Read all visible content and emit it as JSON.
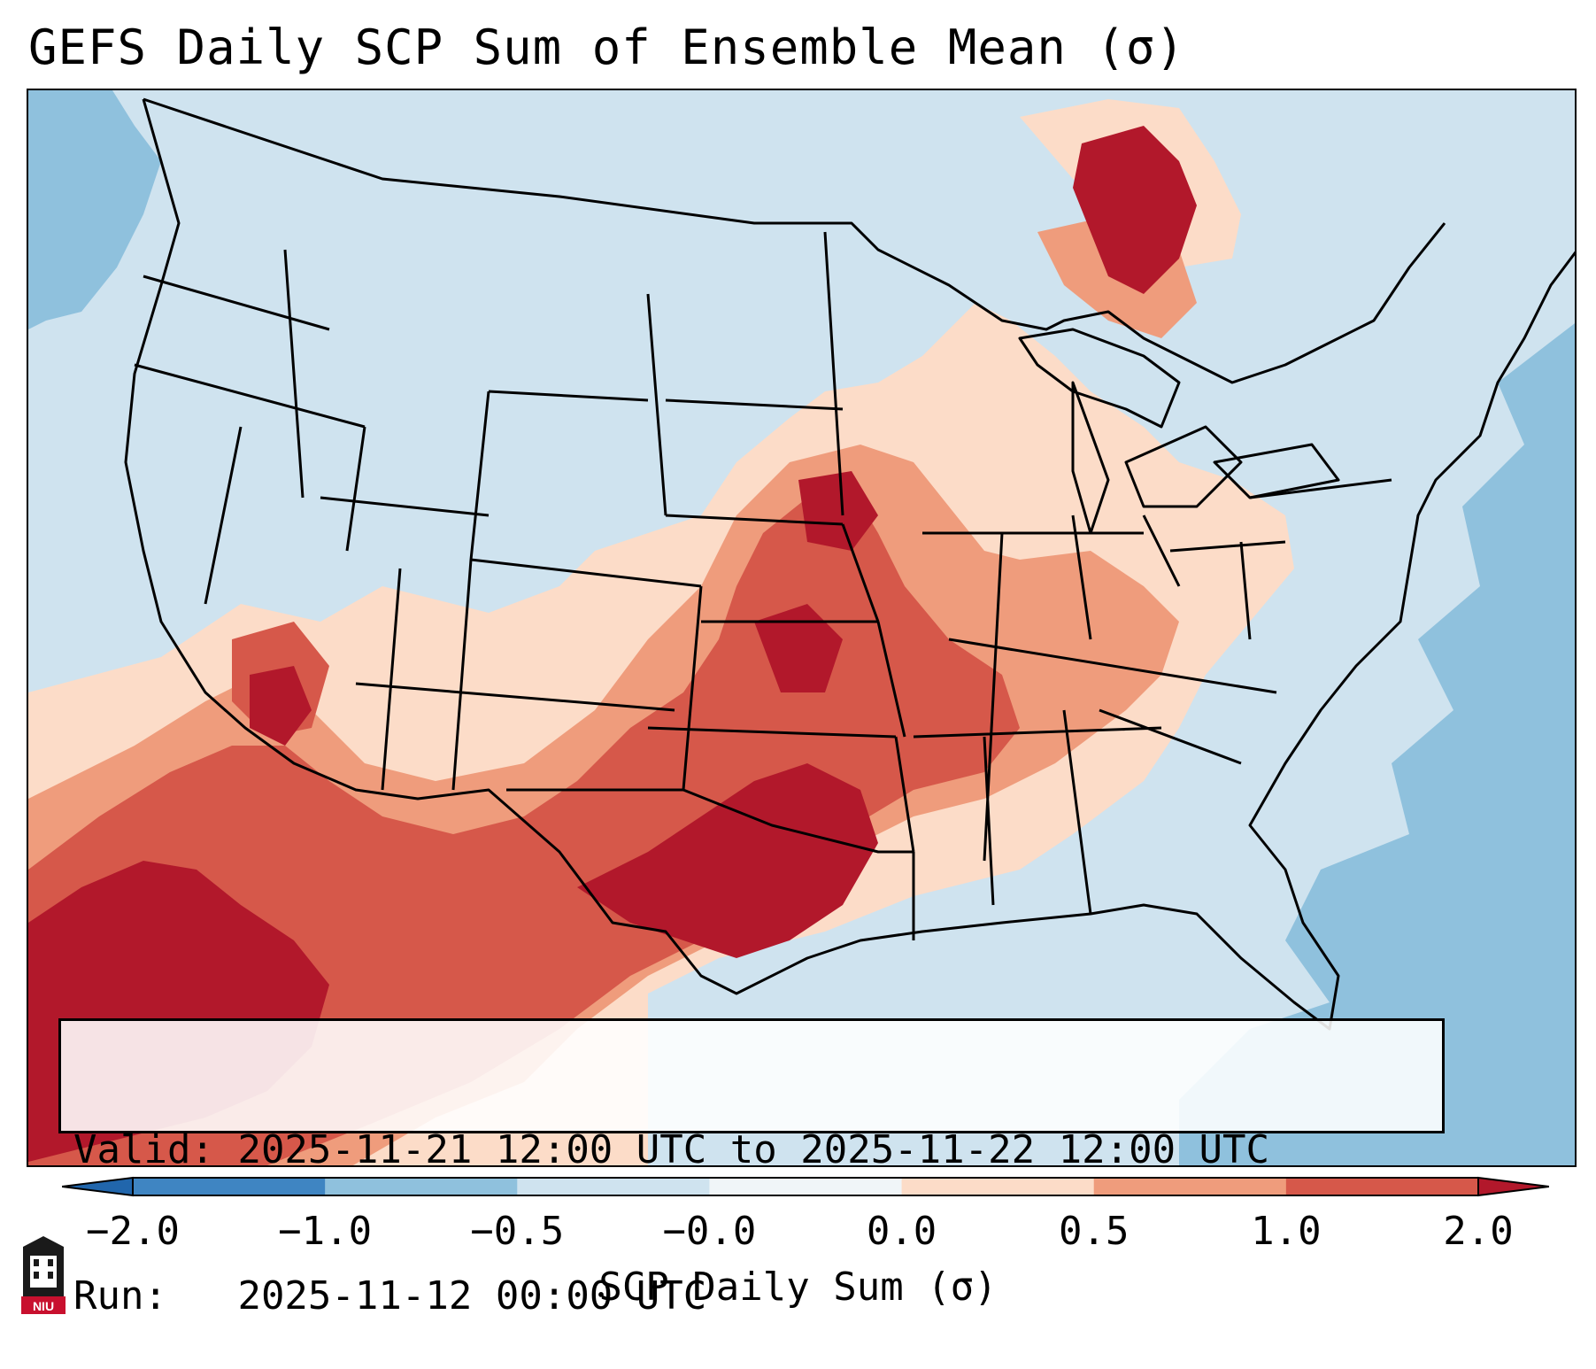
{
  "title": "GEFS Daily SCP Sum of Ensemble Mean (σ)",
  "info": {
    "valid_label": "Valid:",
    "valid_value": "2025-11-21 12:00 UTC to 2025-11-22 12:00 UTC",
    "run_label": "Run:",
    "run_value": "2025-11-12 00:00 UTC"
  },
  "colorbar": {
    "label": "SCP Daily Sum (σ)",
    "ticks": [
      "−2.0",
      "−1.0",
      "−0.5",
      "−0.0",
      "0.0",
      "0.5",
      "1.0",
      "2.0"
    ],
    "colors": [
      "#3f85c2",
      "#8fc1dd",
      "#cfe3ef",
      "#f0f5f8",
      "#fcdcc8",
      "#ef9c7c",
      "#d6584a"
    ],
    "under_color": "#2166ac",
    "over_color": "#b2182b"
  },
  "map": {
    "projection": "Lambert Conformal CONUS",
    "palette": {
      "strong_neg": "#8fc1dd",
      "weak_neg": "#cfe3ef",
      "weak_pos": "#fcdcc8",
      "mod_pos": "#ef9c7c",
      "high_pos": "#d6584a",
      "extreme_pos": "#b2182b"
    }
  },
  "logo": {
    "text": "NIU",
    "color": "#c8102e"
  }
}
